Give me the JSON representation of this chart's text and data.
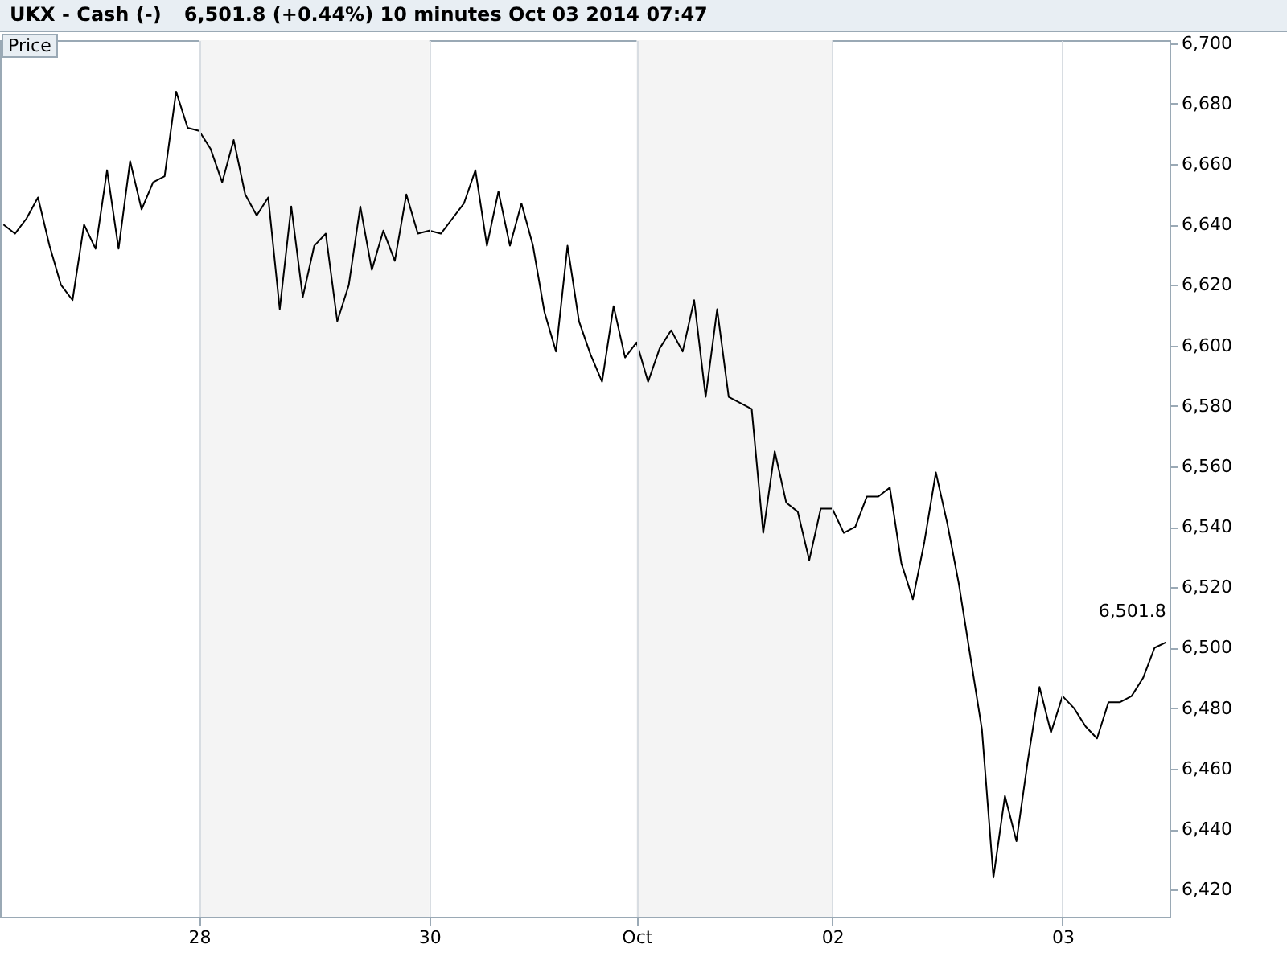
{
  "chart_data": {
    "type": "line",
    "title": "UKX - Cash (-)",
    "subtitle": "6,501.8 (+0.44%)   10 minutes   Oct 03 2014 07:47",
    "ylabel": "Price",
    "categories": [
      null,
      null,
      null,
      null,
      null,
      null,
      null,
      null,
      null,
      null,
      null,
      null,
      null,
      null,
      null,
      null,
      null,
      "28",
      null,
      null,
      null,
      null,
      null,
      null,
      null,
      null,
      null,
      null,
      null,
      null,
      null,
      null,
      null,
      null,
      null,
      null,
      null,
      "30",
      null,
      null,
      null,
      null,
      null,
      null,
      null,
      null,
      null,
      null,
      null,
      null,
      null,
      null,
      null,
      null,
      null,
      "Oct",
      null,
      null,
      null,
      null,
      null,
      null,
      null,
      null,
      null,
      null,
      null,
      null,
      null,
      null,
      null,
      null,
      "02",
      null,
      null,
      null,
      null,
      null,
      null,
      null,
      null,
      null,
      null,
      null,
      null,
      null,
      null,
      null,
      null,
      null,
      null,
      null,
      "03",
      null,
      null,
      null,
      null,
      null,
      null,
      null,
      null,
      null
    ],
    "series": [
      {
        "color": "#000000",
        "values": [
          6640,
          6637,
          6642,
          6649,
          6633,
          6620,
          6615,
          6640,
          6632,
          6658,
          6632,
          6661,
          6645,
          6654,
          6656,
          6684,
          6672,
          6671,
          6665,
          6654,
          6668,
          6650,
          6643,
          6649,
          6612,
          6646,
          6616,
          6633,
          6637,
          6608,
          6620,
          6646,
          6625,
          6638,
          6628,
          6650,
          6637,
          6638,
          6637,
          6642,
          6647,
          6658,
          6633,
          6651,
          6633,
          6647,
          6633,
          6611,
          6598,
          6633,
          6608,
          6597,
          6588,
          6613,
          6596,
          6601,
          6588,
          6599,
          6605,
          6598,
          6615,
          6583,
          6612,
          6583,
          6581,
          6579,
          6538,
          6565,
          6548,
          6545,
          6529,
          6546,
          6546,
          6538,
          6540,
          6550,
          6550,
          6553,
          6528,
          6516,
          6535,
          6558,
          6541,
          6521,
          6497,
          6473,
          6424,
          6451,
          6436,
          6463,
          6487,
          6472,
          6484,
          6480,
          6474,
          6470,
          6482,
          6482,
          6484,
          6490,
          6500,
          6501.8
        ]
      }
    ],
    "ylim": [
      6411,
      6701
    ],
    "yticks": [
      {
        "value": 6420,
        "label": "6,420"
      },
      {
        "value": 6440,
        "label": "6,440"
      },
      {
        "value": 6460,
        "label": "6,460"
      },
      {
        "value": 6480,
        "label": "6,480"
      },
      {
        "value": 6500,
        "label": "6,500"
      },
      {
        "value": 6520,
        "label": "6,520"
      },
      {
        "value": 6540,
        "label": "6,540"
      },
      {
        "value": 6560,
        "label": "6,560"
      },
      {
        "value": 6580,
        "label": "6,580"
      },
      {
        "value": 6600,
        "label": "6,600"
      },
      {
        "value": 6620,
        "label": "6,620"
      },
      {
        "value": 6640,
        "label": "6,640"
      },
      {
        "value": 6660,
        "label": "6,660"
      },
      {
        "value": 6680,
        "label": "6,680"
      },
      {
        "value": 6700,
        "label": "6,700"
      }
    ],
    "bands": [
      {
        "axis": "x",
        "from": "28",
        "to": "30",
        "color": "#f4f4f4"
      },
      {
        "axis": "x",
        "from": "Oct",
        "to": "02",
        "color": "#f4f4f4"
      }
    ],
    "annotations": [
      "6,501.8"
    ],
    "grid": "x",
    "marker": "none"
  }
}
